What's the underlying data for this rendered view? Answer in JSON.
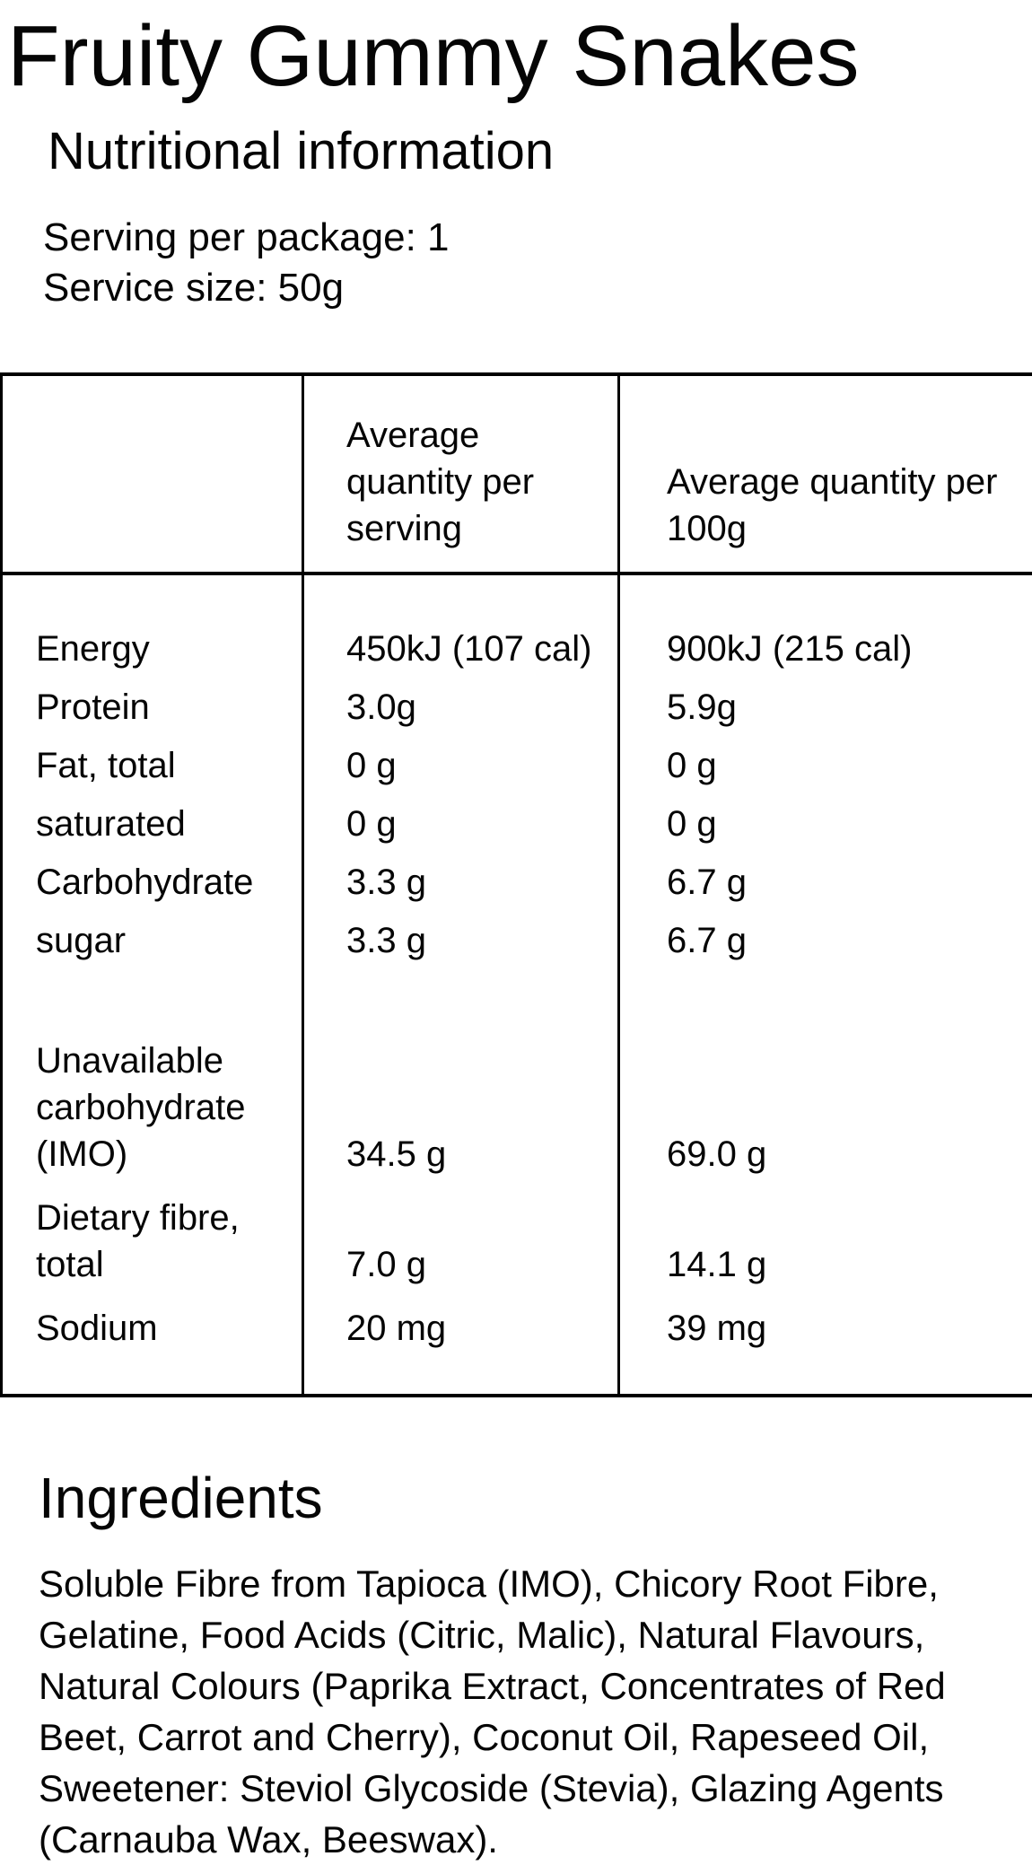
{
  "page": {
    "title": "Fruity Gummy Snakes",
    "nutrition": {
      "heading": "Nutritional information",
      "serving_per_package": "Serving per package: 1",
      "serving_size": "Service size: 50g"
    },
    "table": {
      "columns": [
        "",
        "Average quantity per serving",
        "Average quantity per 100g"
      ],
      "rows": [
        {
          "label": "Energy",
          "per_serving": "450kJ (107 cal)",
          "per_100g": "900kJ (215 cal)"
        },
        {
          "label": "Protein",
          "per_serving": "3.0g",
          "per_100g": "5.9g"
        },
        {
          "label": "Fat, total",
          "per_serving": "0 g",
          "per_100g": "0 g"
        },
        {
          "label": "saturated",
          "per_serving": "0 g",
          "per_100g": "0 g"
        },
        {
          "label": "Carbohydrate",
          "per_serving": "3.3 g",
          "per_100g": "6.7 g"
        },
        {
          "label": "sugar",
          "per_serving": "3.3 g",
          "per_100g": "6.7 g"
        },
        {
          "label": "Unavailable carbohydrate (IMO)",
          "per_serving": "34.5 g",
          "per_100g": "69.0 g"
        },
        {
          "label": "Dietary fibre, total",
          "per_serving": "7.0 g",
          "per_100g": "14.1 g"
        },
        {
          "label": "Sodium",
          "per_serving": "20 mg",
          "per_100g": "39 mg"
        }
      ]
    },
    "ingredients": {
      "heading": "Ingredients",
      "lines": [
        "Soluble Fibre from Tapioca (IMO), Chicory Root Fibre,",
        "Gelatine, Food Acids (Citric, Malic), Natural Flavours,",
        "Natural Colours (Paprika Extract, Concentrates of Red",
        "Beet, Carrot and Cherry), Coconut Oil, Rapeseed Oil,",
        "Sweetener: Steviol Glycoside (Stevia), Glazing Agents",
        "(Carnauba Wax, Beeswax)."
      ]
    }
  }
}
